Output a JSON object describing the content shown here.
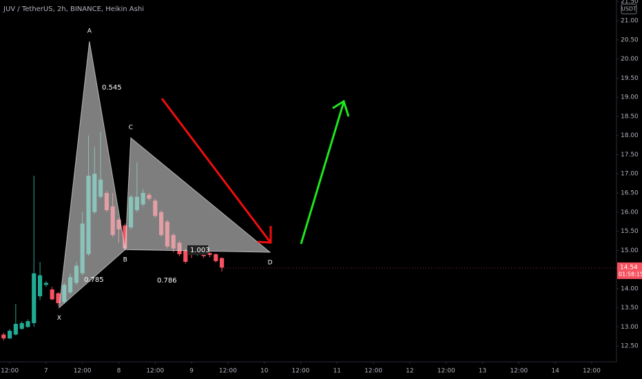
{
  "chart_data": {
    "type": "candlestick",
    "title": "JUV / TetherUS, 2h, BINANCE, Heikin Ashi",
    "currency": "USDT",
    "x": [
      -14,
      -12,
      -10,
      -8,
      -6,
      -4,
      -2,
      0,
      2,
      4,
      6,
      8,
      10,
      12,
      14,
      16,
      18,
      20,
      22,
      24,
      26,
      28,
      30,
      32,
      34,
      36,
      38,
      40,
      42,
      44,
      46,
      48,
      50,
      52,
      54,
      56,
      58
    ],
    "open": [
      12.8,
      12.7,
      12.8,
      12.95,
      13.0,
      13.1,
      13.8,
      14.1,
      13.98,
      13.88,
      13.65,
      13.9,
      14.15,
      14.4,
      14.9,
      16.0,
      16.4,
      16.5,
      16.15,
      15.8,
      15.65,
      15.6,
      16.05,
      16.2,
      16.45,
      16.3,
      16.0,
      15.75,
      15.4,
      15.2,
      15.0,
      14.95,
      14.88,
      14.95,
      14.93,
      14.9,
      14.8
    ],
    "close": [
      12.7,
      12.9,
      13.08,
      13.1,
      13.15,
      14.4,
      14.35,
      14.15,
      13.72,
      13.62,
      14.1,
      14.3,
      14.6,
      15.7,
      16.95,
      17.0,
      16.85,
      16.05,
      15.4,
      15.55,
      15.05,
      16.4,
      16.4,
      16.5,
      16.35,
      15.9,
      15.4,
      15.1,
      15.05,
      14.9,
      14.7,
      14.88,
      14.94,
      14.85,
      14.88,
      14.72,
      14.55
    ],
    "high": [
      12.85,
      12.95,
      13.6,
      13.15,
      13.2,
      16.95,
      14.7,
      14.2,
      14.05,
      13.9,
      14.15,
      14.4,
      14.7,
      16.0,
      18.0,
      17.7,
      18.1,
      16.55,
      16.5,
      15.85,
      15.7,
      16.45,
      17.3,
      16.6,
      16.5,
      16.35,
      16.05,
      15.8,
      15.45,
      15.25,
      15.05,
      15.0,
      14.98,
      14.98,
      14.96,
      14.92,
      14.82
    ],
    "low": [
      12.65,
      12.68,
      12.78,
      12.93,
      12.98,
      13.0,
      13.7,
      14.05,
      13.7,
      13.55,
      13.6,
      13.85,
      14.1,
      14.35,
      14.85,
      15.95,
      16.35,
      16.0,
      15.35,
      15.2,
      15.0,
      15.55,
      16.0,
      16.15,
      16.3,
      15.85,
      15.35,
      15.05,
      14.95,
      14.85,
      14.65,
      14.8,
      14.85,
      14.8,
      14.82,
      14.68,
      14.45
    ],
    "up_color": "#22ab94",
    "down_color": "#f7525f",
    "last_price": 14.54,
    "countdown": "01:58:15",
    "xlim": [
      -15.2,
      188.2
    ],
    "ylim": [
      12.09,
      21.54
    ],
    "yticks": [
      {
        "value": 12.5,
        "label": "12.50"
      },
      {
        "value": 13,
        "label": "13.00"
      },
      {
        "value": 13.5,
        "label": "13.50"
      },
      {
        "value": 14,
        "label": "14.00"
      },
      {
        "value": 14.5,
        "label": "14.50"
      },
      {
        "value": 15,
        "label": "15.00"
      },
      {
        "value": 15.5,
        "label": "15.50"
      },
      {
        "value": 16,
        "label": "16.00"
      },
      {
        "value": 16.5,
        "label": "16.50"
      },
      {
        "value": 17,
        "label": "17.00"
      },
      {
        "value": 17.5,
        "label": "17.50"
      },
      {
        "value": 18,
        "label": "18.00"
      },
      {
        "value": 18.5,
        "label": "18.50"
      },
      {
        "value": 19,
        "label": "19.00"
      },
      {
        "value": 19.5,
        "label": "19.50"
      },
      {
        "value": 20,
        "label": "20.00"
      },
      {
        "value": 20.5,
        "label": "20.50"
      },
      {
        "value": 21,
        "label": "21.00"
      },
      {
        "value": 21.5,
        "label": "21.50"
      }
    ],
    "xticks": [
      {
        "value": -12,
        "label": "12:00"
      },
      {
        "value": 0,
        "label": "7"
      },
      {
        "value": 12,
        "label": "12:00"
      },
      {
        "value": 24,
        "label": "8"
      },
      {
        "value": 36,
        "label": "12:00"
      },
      {
        "value": 48,
        "label": "9"
      },
      {
        "value": 60,
        "label": "12:00"
      },
      {
        "value": 72,
        "label": "10"
      },
      {
        "value": 84,
        "label": "12:00"
      },
      {
        "value": 96,
        "label": "11"
      },
      {
        "value": 108,
        "label": "12:00"
      },
      {
        "value": 120,
        "label": "12"
      },
      {
        "value": 132,
        "label": "12:00"
      },
      {
        "value": 144,
        "label": "13"
      },
      {
        "value": 156,
        "label": "12:00"
      },
      {
        "value": 168,
        "label": "14"
      },
      {
        "value": 180,
        "label": "12:00"
      }
    ],
    "pattern": {
      "points": [
        {
          "label": "X",
          "x": 4.3,
          "y": 13.5
        },
        {
          "label": "A",
          "x": 14.3,
          "y": 20.46
        },
        {
          "label": "B",
          "x": 26.1,
          "y": 15.02
        },
        {
          "label": "C",
          "x": 27.95,
          "y": 17.94
        },
        {
          "label": "D",
          "x": 73.9,
          "y": 14.95
        }
      ],
      "ratios": [
        "0.545",
        "0.785",
        "0.786",
        "1.003"
      ]
    }
  }
}
